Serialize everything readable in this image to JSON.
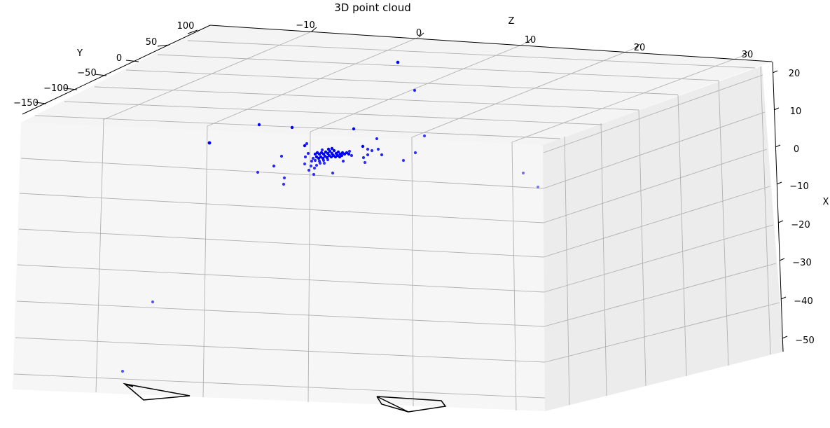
{
  "chart_data": {
    "type": "scatter",
    "projection": "3d",
    "title": "3D point cloud",
    "xlabel": "X",
    "ylabel": "Y",
    "zlabel": "Z",
    "x_ticks": [
      "20",
      "10",
      "0",
      "−10",
      "−20",
      "−30",
      "−40",
      "−50"
    ],
    "y_ticks": [
      "100",
      "50",
      "0",
      "−50",
      "−100",
      "−150"
    ],
    "z_ticks": [
      "−10",
      "0",
      "10",
      "20",
      "30"
    ],
    "grid": true,
    "pane_color": "#f2f2f2",
    "point_color": "#0000ff",
    "camera_color": "#000000",
    "n_points": 95,
    "n_cameras": 2
  }
}
